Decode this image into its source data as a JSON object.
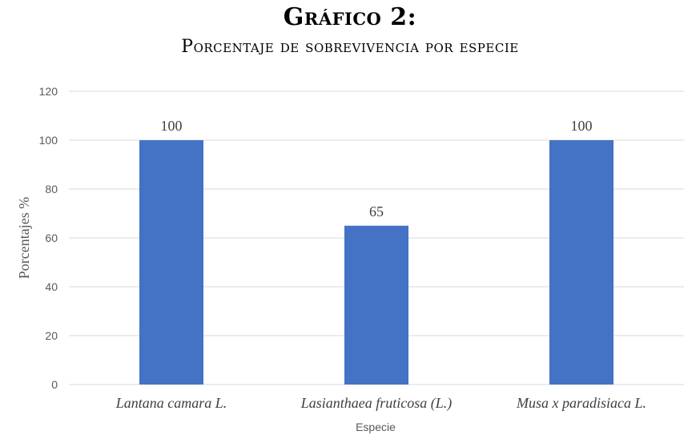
{
  "title": "Gráfico 2:",
  "subtitle": "Porcentaje de sobrevivencia por especie",
  "chart_data": {
    "type": "bar",
    "categories": [
      "Lantana camara L.",
      "Lasianthaea fruticosa (L.)",
      "Musa x paradisiaca L."
    ],
    "values": [
      100,
      65,
      100
    ],
    "data_labels": [
      "100",
      "65",
      "100"
    ],
    "xlabel": "Especie",
    "ylabel": "Porcentajes %",
    "ylim": [
      0,
      120
    ],
    "yticks": [
      "0",
      "20",
      "40",
      "60",
      "80",
      "100",
      "120"
    ],
    "grid": true,
    "legend": "none",
    "bar_color": "#4472C4",
    "grid_color": "#D9D9D9"
  }
}
